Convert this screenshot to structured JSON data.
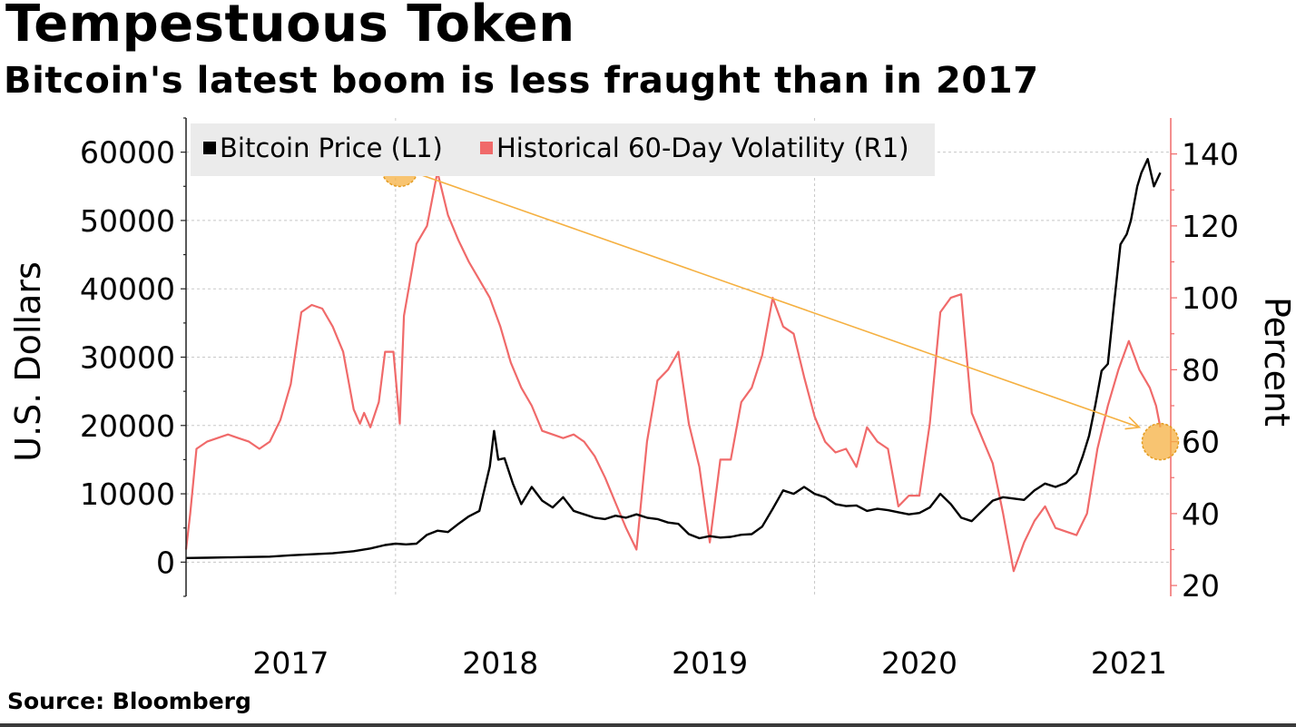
{
  "header": {
    "title": "Tempestuous Token",
    "subtitle": "Bitcoin's latest boom is less fraught than in 2017"
  },
  "footer": {
    "source": "Source: Bloomberg"
  },
  "chart_data": {
    "type": "line",
    "title": "Tempestuous Token",
    "subtitle": "Bitcoin's latest boom is less fraught than in 2017",
    "xlabel": "",
    "ylabel_left": "U.S. Dollars",
    "ylabel_right": "Percent",
    "xlim": [
      2016.5,
      2021.2
    ],
    "ylim_left": [
      -5000,
      65000
    ],
    "ylim_right": [
      17,
      150
    ],
    "x_ticks": [
      2017,
      2018,
      2019,
      2020,
      2021
    ],
    "x_tick_labels": [
      "2017",
      "2018",
      "2019",
      "2020",
      "2021"
    ],
    "y_ticks_left": [
      0,
      10000,
      20000,
      30000,
      40000,
      50000,
      60000
    ],
    "y_tick_labels_left": [
      "0",
      "10000",
      "20000",
      "30000",
      "40000",
      "50000",
      "60000"
    ],
    "y_ticks_right": [
      20,
      40,
      60,
      80,
      100,
      120,
      140
    ],
    "y_tick_labels_right": [
      "20",
      "40",
      "60",
      "80",
      "100",
      "120",
      "140"
    ],
    "grid": true,
    "legend_position": "top-left",
    "colors": {
      "btc": "#000000",
      "vol": "#f06a6a",
      "right_axis": "#f06a6a",
      "highlight": "#f5b041",
      "arrow": "#f5b041",
      "legend_bg": "#ebebeb"
    },
    "series": [
      {
        "name": "Bitcoin Price (L1)",
        "axis": "left",
        "x": [
          2016.5,
          2016.6,
          2016.7,
          2016.8,
          2016.9,
          2017.0,
          2017.1,
          2017.2,
          2017.3,
          2017.38,
          2017.45,
          2017.5,
          2017.55,
          2017.6,
          2017.65,
          2017.7,
          2017.75,
          2017.8,
          2017.85,
          2017.9,
          2017.95,
          2017.97,
          2017.99,
          2018.02,
          2018.06,
          2018.1,
          2018.15,
          2018.2,
          2018.25,
          2018.3,
          2018.35,
          2018.4,
          2018.45,
          2018.5,
          2018.55,
          2018.6,
          2018.65,
          2018.7,
          2018.75,
          2018.8,
          2018.85,
          2018.9,
          2018.95,
          2019.0,
          2019.05,
          2019.1,
          2019.15,
          2019.2,
          2019.25,
          2019.3,
          2019.35,
          2019.4,
          2019.45,
          2019.5,
          2019.55,
          2019.6,
          2019.65,
          2019.7,
          2019.75,
          2019.8,
          2019.85,
          2019.9,
          2019.95,
          2020.0,
          2020.05,
          2020.1,
          2020.15,
          2020.2,
          2020.25,
          2020.3,
          2020.35,
          2020.4,
          2020.45,
          2020.5,
          2020.55,
          2020.6,
          2020.65,
          2020.7,
          2020.75,
          2020.78,
          2020.81,
          2020.84,
          2020.87,
          2020.9,
          2020.93,
          2020.96,
          2020.99,
          2021.01,
          2021.04,
          2021.06,
          2021.09,
          2021.12,
          2021.15
        ],
        "values": [
          600,
          650,
          700,
          750,
          800,
          1000,
          1150,
          1300,
          1600,
          2000,
          2500,
          2700,
          2600,
          2700,
          4000,
          4600,
          4400,
          5600,
          6700,
          7500,
          14000,
          19200,
          15000,
          15200,
          11500,
          8500,
          11000,
          9000,
          8000,
          9500,
          7500,
          7000,
          6500,
          6300,
          6800,
          6500,
          7000,
          6500,
          6300,
          5800,
          5600,
          4100,
          3500,
          3800,
          3600,
          3700,
          4000,
          4100,
          5200,
          7800,
          10500,
          10000,
          11000,
          10000,
          9500,
          8500,
          8200,
          8300,
          7500,
          7800,
          7600,
          7300,
          7000,
          7200,
          8000,
          10000,
          8500,
          6500,
          6000,
          7500,
          9000,
          9500,
          9300,
          9100,
          10500,
          11500,
          11000,
          11600,
          13000,
          15500,
          18500,
          23000,
          28000,
          29000,
          38000,
          46500,
          48000,
          50000,
          55000,
          57000,
          59000,
          55000,
          57000
        ]
      },
      {
        "name": "Historical 60-Day Volatility (R1)",
        "axis": "right",
        "x": [
          2016.5,
          2016.52,
          2016.55,
          2016.6,
          2016.7,
          2016.75,
          2016.8,
          2016.85,
          2016.9,
          2016.95,
          2017.0,
          2017.05,
          2017.1,
          2017.15,
          2017.2,
          2017.25,
          2017.3,
          2017.33,
          2017.35,
          2017.38,
          2017.42,
          2017.45,
          2017.49,
          2017.52,
          2017.54,
          2017.6,
          2017.65,
          2017.7,
          2017.75,
          2017.8,
          2017.85,
          2017.9,
          2017.95,
          2018.0,
          2018.05,
          2018.1,
          2018.15,
          2018.2,
          2018.25,
          2018.3,
          2018.35,
          2018.4,
          2018.45,
          2018.5,
          2018.55,
          2018.6,
          2018.65,
          2018.7,
          2018.75,
          2018.8,
          2018.85,
          2018.9,
          2018.95,
          2019.0,
          2019.05,
          2019.1,
          2019.15,
          2019.2,
          2019.25,
          2019.3,
          2019.35,
          2019.4,
          2019.45,
          2019.5,
          2019.55,
          2019.6,
          2019.65,
          2019.7,
          2019.75,
          2019.8,
          2019.85,
          2019.9,
          2019.95,
          2020.0,
          2020.05,
          2020.1,
          2020.15,
          2020.2,
          2020.25,
          2020.3,
          2020.35,
          2020.4,
          2020.45,
          2020.5,
          2020.55,
          2020.6,
          2020.65,
          2020.7,
          2020.75,
          2020.8,
          2020.85,
          2020.9,
          2020.95,
          2021.0,
          2021.05,
          2021.1,
          2021.13,
          2021.15
        ],
        "values": [
          30,
          40,
          58,
          60,
          62,
          61,
          60,
          58,
          60,
          66,
          76,
          96,
          98,
          97,
          92,
          85,
          69,
          65,
          68,
          64,
          71,
          85,
          85,
          65,
          95,
          115,
          120,
          135,
          123,
          116,
          110,
          105,
          100,
          92,
          82,
          75,
          70,
          63,
          62,
          61,
          62,
          60,
          56,
          50,
          43,
          36,
          30,
          60,
          77,
          80,
          85,
          65,
          53,
          32,
          55,
          55,
          71,
          75,
          84,
          100,
          92,
          90,
          78,
          67,
          60,
          57,
          58,
          53,
          64,
          60,
          58,
          42,
          45,
          45,
          65,
          96,
          100,
          101,
          68,
          61,
          54,
          40,
          24,
          32,
          38,
          42,
          36,
          35,
          34,
          40,
          58,
          70,
          80,
          88,
          80,
          75,
          70,
          64
        ]
      }
    ],
    "annotations": [
      {
        "type": "highlight-circle",
        "axis": "right",
        "x": 2017.52,
        "y": 136
      },
      {
        "type": "highlight-circle",
        "axis": "right",
        "x": 2021.15,
        "y": 60
      },
      {
        "type": "arrow",
        "axis": "right",
        "from": [
          2017.52,
          136
        ],
        "to": [
          2021.05,
          64
        ]
      }
    ]
  }
}
